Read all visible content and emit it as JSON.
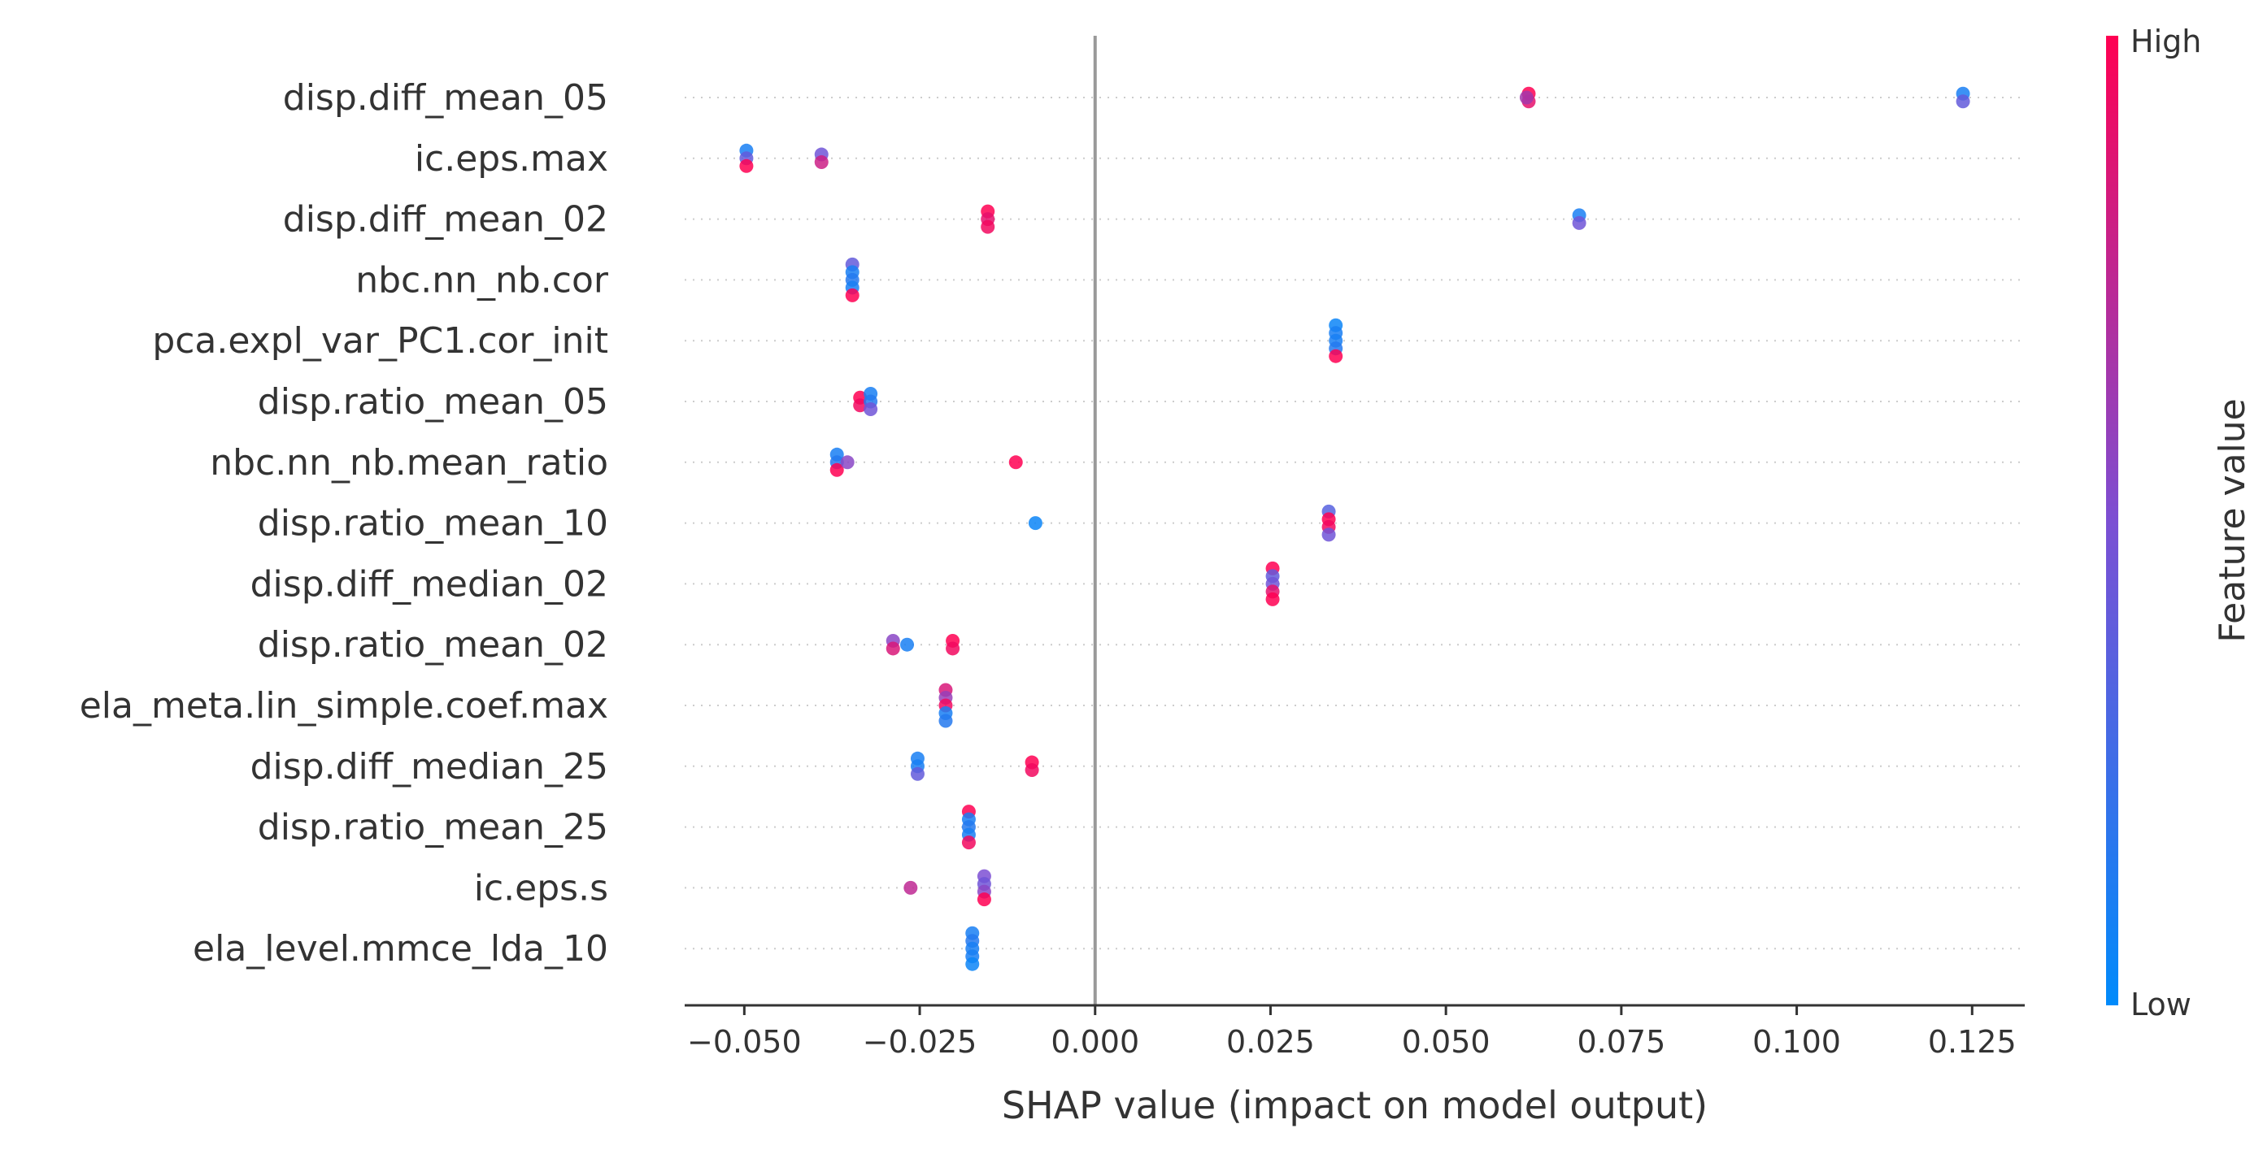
{
  "chart_data": {
    "type": "scatter",
    "subtype": "shap-beeswarm",
    "title": "",
    "xlabel": "SHAP value (impact on model output)",
    "ylabel": "",
    "xlim": [
      -0.0585,
      0.1325
    ],
    "xticks": [
      -0.05,
      -0.025,
      0.0,
      0.025,
      0.05,
      0.075,
      0.1,
      0.125
    ],
    "xtick_labels": [
      "−0.050",
      "−0.025",
      "0.000",
      "0.025",
      "0.050",
      "0.075",
      "0.100",
      "0.125"
    ],
    "zero_line": 0.0,
    "grid": "dotted horizontal row guides",
    "colorbar": {
      "title": "Feature value",
      "high_label": "High",
      "low_label": "Low",
      "low_color": "#008bfb",
      "mid_color": "#7c4fd3",
      "high_color": "#ff0052"
    },
    "features": [
      {
        "name": "disp.diff_mean_05",
        "points": [
          {
            "shap": 0.0618,
            "value": 1.0
          },
          {
            "shap": 0.0618,
            "value": 0.9
          },
          {
            "shap": 0.0615,
            "value": 0.65
          },
          {
            "shap": 0.1237,
            "value": 0.1
          },
          {
            "shap": 0.1237,
            "value": 0.4
          }
        ]
      },
      {
        "name": "ic.eps.max",
        "points": [
          {
            "shap": -0.0497,
            "value": 0.1
          },
          {
            "shap": -0.0497,
            "value": 0.4
          },
          {
            "shap": -0.0497,
            "value": 1.0
          },
          {
            "shap": -0.039,
            "value": 0.45
          },
          {
            "shap": -0.039,
            "value": 0.8
          }
        ]
      },
      {
        "name": "disp.diff_mean_02",
        "points": [
          {
            "shap": -0.0153,
            "value": 1.0
          },
          {
            "shap": -0.0153,
            "value": 0.9
          },
          {
            "shap": -0.0153,
            "value": 0.95
          },
          {
            "shap": 0.069,
            "value": 0.1
          },
          {
            "shap": 0.069,
            "value": 0.45
          }
        ]
      },
      {
        "name": "nbc.nn_nb.cor",
        "points": [
          {
            "shap": -0.0346,
            "value": 0.4
          },
          {
            "shap": -0.0346,
            "value": 0.1
          },
          {
            "shap": -0.0346,
            "value": 0.15
          },
          {
            "shap": -0.0346,
            "value": 0.1
          },
          {
            "shap": -0.0346,
            "value": 1.0
          }
        ]
      },
      {
        "name": "pca.expl_var_PC1.cor_init",
        "points": [
          {
            "shap": 0.0343,
            "value": 0.05
          },
          {
            "shap": 0.0343,
            "value": 0.1
          },
          {
            "shap": 0.0343,
            "value": 0.1
          },
          {
            "shap": 0.0343,
            "value": 0.15
          },
          {
            "shap": 0.0343,
            "value": 1.0
          }
        ]
      },
      {
        "name": "disp.ratio_mean_05",
        "points": [
          {
            "shap": -0.0335,
            "value": 1.0
          },
          {
            "shap": -0.032,
            "value": 0.1
          },
          {
            "shap": -0.0335,
            "value": 0.95
          },
          {
            "shap": -0.032,
            "value": 0.15
          },
          {
            "shap": -0.032,
            "value": 0.45
          }
        ]
      },
      {
        "name": "nbc.nn_nb.mean_ratio",
        "points": [
          {
            "shap": -0.0368,
            "value": 0.1
          },
          {
            "shap": -0.0368,
            "value": 0.15
          },
          {
            "shap": -0.0353,
            "value": 0.55
          },
          {
            "shap": -0.0368,
            "value": 1.0
          },
          {
            "shap": -0.0113,
            "value": 1.0
          }
        ]
      },
      {
        "name": "disp.ratio_mean_10",
        "points": [
          {
            "shap": 0.0333,
            "value": 0.35
          },
          {
            "shap": 0.0333,
            "value": 1.0
          },
          {
            "shap": 0.0333,
            "value": 0.95
          },
          {
            "shap": 0.0333,
            "value": 0.45
          },
          {
            "shap": -0.0085,
            "value": 0.05
          }
        ]
      },
      {
        "name": "disp.diff_median_02",
        "points": [
          {
            "shap": 0.0253,
            "value": 1.0
          },
          {
            "shap": 0.0253,
            "value": 0.4
          },
          {
            "shap": 0.0253,
            "value": 0.45
          },
          {
            "shap": 0.0253,
            "value": 0.9
          },
          {
            "shap": 0.0253,
            "value": 1.0
          }
        ]
      },
      {
        "name": "disp.ratio_mean_02",
        "points": [
          {
            "shap": -0.0288,
            "value": 0.55
          },
          {
            "shap": -0.0288,
            "value": 0.85
          },
          {
            "shap": -0.0268,
            "value": 0.1
          },
          {
            "shap": -0.0203,
            "value": 1.0
          },
          {
            "shap": -0.0203,
            "value": 0.95
          }
        ]
      },
      {
        "name": "ela_meta.lin_simple.coef.max",
        "points": [
          {
            "shap": -0.0213,
            "value": 0.85
          },
          {
            "shap": -0.0213,
            "value": 0.6
          },
          {
            "shap": -0.0213,
            "value": 0.95
          },
          {
            "shap": -0.0213,
            "value": 0.1
          },
          {
            "shap": -0.0213,
            "value": 0.15
          }
        ]
      },
      {
        "name": "disp.diff_median_25",
        "points": [
          {
            "shap": -0.0253,
            "value": 0.1
          },
          {
            "shap": -0.0253,
            "value": 0.1
          },
          {
            "shap": -0.0253,
            "value": 0.4
          },
          {
            "shap": -0.009,
            "value": 1.0
          },
          {
            "shap": -0.009,
            "value": 0.95
          }
        ]
      },
      {
        "name": "disp.ratio_mean_25",
        "points": [
          {
            "shap": -0.018,
            "value": 1.0
          },
          {
            "shap": -0.018,
            "value": 0.1
          },
          {
            "shap": -0.018,
            "value": 0.15
          },
          {
            "shap": -0.018,
            "value": 0.1
          },
          {
            "shap": -0.018,
            "value": 0.95
          }
        ]
      },
      {
        "name": "ic.eps.s",
        "points": [
          {
            "shap": -0.0158,
            "value": 0.5
          },
          {
            "shap": -0.0158,
            "value": 0.45
          },
          {
            "shap": -0.0263,
            "value": 0.75
          },
          {
            "shap": -0.0158,
            "value": 0.55
          },
          {
            "shap": -0.0158,
            "value": 1.0
          }
        ]
      },
      {
        "name": "ela_level.mmce_lda_10",
        "points": [
          {
            "shap": -0.0175,
            "value": 0.1
          },
          {
            "shap": -0.0175,
            "value": 0.15
          },
          {
            "shap": -0.0175,
            "value": 0.1
          },
          {
            "shap": -0.0175,
            "value": 0.1
          },
          {
            "shap": -0.0175,
            "value": 0.05
          }
        ]
      }
    ]
  }
}
